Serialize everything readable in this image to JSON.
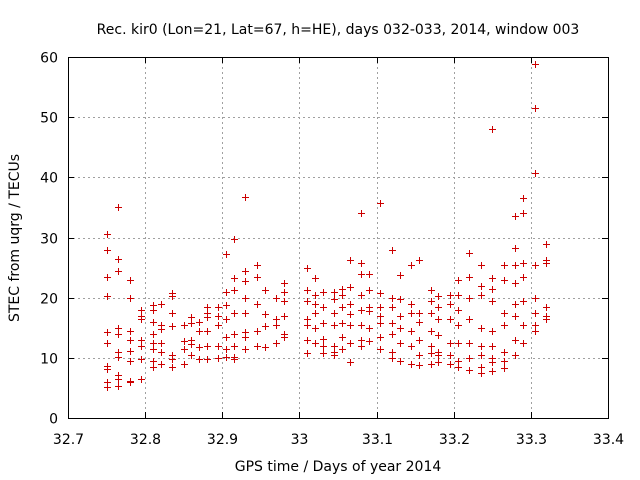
{
  "chart_data": {
    "type": "scatter",
    "title": "Rec. kir0 (Lon=21, Lat=67, h=HE), days 032-033, 2014, window 003",
    "xlabel": "GPS time / Days of year 2014",
    "ylabel": "STEC from uqrg / TECUs",
    "xlim": [
      32.7,
      33.4
    ],
    "ylim": [
      0,
      60
    ],
    "x_ticks": [
      32.7,
      32.8,
      32.9,
      33.0,
      33.1,
      33.2,
      33.3,
      33.4
    ],
    "x_tick_labels": [
      "32.7",
      "32.8",
      "32.9",
      "33",
      "33.1",
      "33.2",
      "33.3",
      "33.4"
    ],
    "y_ticks": [
      0,
      10,
      20,
      30,
      40,
      50,
      60
    ],
    "y_tick_labels": [
      "0",
      "10",
      "20",
      "30",
      "40",
      "50",
      "60"
    ],
    "grid": true,
    "marker": "+",
    "color": "#cc0000",
    "series": [
      {
        "name": "STEC",
        "points": [
          [
            32.75,
            30.5
          ],
          [
            32.75,
            28.0
          ],
          [
            32.75,
            23.5
          ],
          [
            32.75,
            20.2
          ],
          [
            32.75,
            14.3
          ],
          [
            32.75,
            12.5
          ],
          [
            32.75,
            8.6
          ],
          [
            32.75,
            8.2
          ],
          [
            32.75,
            6.0
          ],
          [
            32.75,
            5.1
          ],
          [
            32.765,
            35.0
          ],
          [
            32.765,
            26.5
          ],
          [
            32.765,
            24.5
          ],
          [
            32.765,
            15.0
          ],
          [
            32.765,
            14.0
          ],
          [
            32.765,
            11.0
          ],
          [
            32.765,
            10.2
          ],
          [
            32.765,
            7.2
          ],
          [
            32.765,
            6.5
          ],
          [
            32.765,
            5.3
          ],
          [
            32.78,
            23.0
          ],
          [
            32.78,
            20.0
          ],
          [
            32.78,
            14.5
          ],
          [
            32.78,
            13.0
          ],
          [
            32.78,
            11.2
          ],
          [
            32.78,
            9.5
          ],
          [
            32.78,
            6.2
          ],
          [
            32.78,
            6.0
          ],
          [
            32.795,
            18.0
          ],
          [
            32.795,
            17.0
          ],
          [
            32.795,
            16.5
          ],
          [
            32.795,
            13.0
          ],
          [
            32.795,
            12.0
          ],
          [
            32.795,
            9.8
          ],
          [
            32.795,
            6.5
          ],
          [
            32.81,
            18.8
          ],
          [
            32.81,
            18.0
          ],
          [
            32.81,
            16.0
          ],
          [
            32.81,
            14.0
          ],
          [
            32.81,
            12.5
          ],
          [
            32.81,
            11.5
          ],
          [
            32.81,
            9.5
          ],
          [
            32.81,
            8.5
          ],
          [
            32.82,
            19.0
          ],
          [
            32.82,
            15.5
          ],
          [
            32.82,
            14.8
          ],
          [
            32.82,
            12.5
          ],
          [
            32.82,
            11.0
          ],
          [
            32.82,
            9.0
          ],
          [
            32.835,
            20.8
          ],
          [
            32.835,
            20.2
          ],
          [
            32.835,
            17.5
          ],
          [
            32.835,
            15.3
          ],
          [
            32.835,
            10.5
          ],
          [
            32.835,
            9.8
          ],
          [
            32.835,
            8.5
          ],
          [
            32.85,
            15.5
          ],
          [
            32.85,
            12.8
          ],
          [
            32.85,
            11.5
          ],
          [
            32.85,
            9.0
          ],
          [
            32.86,
            16.8
          ],
          [
            32.86,
            15.8
          ],
          [
            32.86,
            13.0
          ],
          [
            32.86,
            12.3
          ],
          [
            32.86,
            10.5
          ],
          [
            32.87,
            16.0
          ],
          [
            32.87,
            14.5
          ],
          [
            32.87,
            11.8
          ],
          [
            32.87,
            9.8
          ],
          [
            32.88,
            18.5
          ],
          [
            32.88,
            17.5
          ],
          [
            32.88,
            16.8
          ],
          [
            32.88,
            14.5
          ],
          [
            32.88,
            12.0
          ],
          [
            32.88,
            9.8
          ],
          [
            32.895,
            18.5
          ],
          [
            32.895,
            17.0
          ],
          [
            32.895,
            15.5
          ],
          [
            32.895,
            12.0
          ],
          [
            32.895,
            10.0
          ],
          [
            32.905,
            27.3
          ],
          [
            32.905,
            21.0
          ],
          [
            32.905,
            18.8
          ],
          [
            32.905,
            16.5
          ],
          [
            32.905,
            13.5
          ],
          [
            32.905,
            11.5
          ],
          [
            32.905,
            10.2
          ],
          [
            32.915,
            29.8
          ],
          [
            32.915,
            23.3
          ],
          [
            32.915,
            21.3
          ],
          [
            32.915,
            17.5
          ],
          [
            32.915,
            14.0
          ],
          [
            32.915,
            12.0
          ],
          [
            32.915,
            10.2
          ],
          [
            32.915,
            9.8
          ],
          [
            32.93,
            36.8
          ],
          [
            32.93,
            24.5
          ],
          [
            32.93,
            22.8
          ],
          [
            32.93,
            20.0
          ],
          [
            32.93,
            17.5
          ],
          [
            32.93,
            14.3
          ],
          [
            32.93,
            13.5
          ],
          [
            32.93,
            11.5
          ],
          [
            32.945,
            25.5
          ],
          [
            32.945,
            23.5
          ],
          [
            32.945,
            19.0
          ],
          [
            32.945,
            14.5
          ],
          [
            32.945,
            12.0
          ],
          [
            32.955,
            21.3
          ],
          [
            32.955,
            17.3
          ],
          [
            32.955,
            15.3
          ],
          [
            32.955,
            11.8
          ],
          [
            32.97,
            20.0
          ],
          [
            32.97,
            16.5
          ],
          [
            32.97,
            15.5
          ],
          [
            32.97,
            12.5
          ],
          [
            32.98,
            22.5
          ],
          [
            32.98,
            21.0
          ],
          [
            32.98,
            19.5
          ],
          [
            32.98,
            17.0
          ],
          [
            32.98,
            14.0
          ],
          [
            32.98,
            13.5
          ],
          [
            33.01,
            25.0
          ],
          [
            33.01,
            21.3
          ],
          [
            33.01,
            19.5
          ],
          [
            33.01,
            16.5
          ],
          [
            33.01,
            15.5
          ],
          [
            33.01,
            13.0
          ],
          [
            33.01,
            10.8
          ],
          [
            33.02,
            23.2
          ],
          [
            33.02,
            20.5
          ],
          [
            33.02,
            19.0
          ],
          [
            33.02,
            17.5
          ],
          [
            33.02,
            15.0
          ],
          [
            33.02,
            12.5
          ],
          [
            33.03,
            21.0
          ],
          [
            33.03,
            18.5
          ],
          [
            33.03,
            15.8
          ],
          [
            33.03,
            13.2
          ],
          [
            33.03,
            12.0
          ],
          [
            33.03,
            10.8
          ],
          [
            33.045,
            21.0
          ],
          [
            33.045,
            19.8
          ],
          [
            33.045,
            17.5
          ],
          [
            33.045,
            15.5
          ],
          [
            33.045,
            12.0
          ],
          [
            33.045,
            11.0
          ],
          [
            33.045,
            10.5
          ],
          [
            33.055,
            21.5
          ],
          [
            33.055,
            20.5
          ],
          [
            33.055,
            18.5
          ],
          [
            33.055,
            15.8
          ],
          [
            33.055,
            13.5
          ],
          [
            33.055,
            11.5
          ],
          [
            33.065,
            26.3
          ],
          [
            33.065,
            21.8
          ],
          [
            33.065,
            19.0
          ],
          [
            33.065,
            17.3
          ],
          [
            33.065,
            15.5
          ],
          [
            33.065,
            12.5
          ],
          [
            33.065,
            9.3
          ],
          [
            33.08,
            34.0
          ],
          [
            33.08,
            25.8
          ],
          [
            33.08,
            24.0
          ],
          [
            33.08,
            20.5
          ],
          [
            33.08,
            18.0
          ],
          [
            33.08,
            15.5
          ],
          [
            33.08,
            13.0
          ],
          [
            33.08,
            12.0
          ],
          [
            33.09,
            24.0
          ],
          [
            33.09,
            21.3
          ],
          [
            33.09,
            18.5
          ],
          [
            33.09,
            17.8
          ],
          [
            33.09,
            15.0
          ],
          [
            33.09,
            12.8
          ],
          [
            33.105,
            35.8
          ],
          [
            33.105,
            20.8
          ],
          [
            33.105,
            18.5
          ],
          [
            33.105,
            17.0
          ],
          [
            33.105,
            15.8
          ],
          [
            33.105,
            13.5
          ],
          [
            33.105,
            11.5
          ],
          [
            33.12,
            28.0
          ],
          [
            33.12,
            20.0
          ],
          [
            33.12,
            18.5
          ],
          [
            33.12,
            15.8
          ],
          [
            33.12,
            14.0
          ],
          [
            33.12,
            11.0
          ],
          [
            33.12,
            10.0
          ],
          [
            33.13,
            23.8
          ],
          [
            33.13,
            19.8
          ],
          [
            33.13,
            17.0
          ],
          [
            33.13,
            15.0
          ],
          [
            33.13,
            12.5
          ],
          [
            33.13,
            9.5
          ],
          [
            33.145,
            25.5
          ],
          [
            33.145,
            19.0
          ],
          [
            33.145,
            17.5
          ],
          [
            33.145,
            14.5
          ],
          [
            33.145,
            12.0
          ],
          [
            33.145,
            9.0
          ],
          [
            33.155,
            26.3
          ],
          [
            33.155,
            17.5
          ],
          [
            33.155,
            16.0
          ],
          [
            33.155,
            13.0
          ],
          [
            33.155,
            10.5
          ],
          [
            33.155,
            8.8
          ],
          [
            33.17,
            21.3
          ],
          [
            33.17,
            19.5
          ],
          [
            33.17,
            17.5
          ],
          [
            33.17,
            14.5
          ],
          [
            33.17,
            12.0
          ],
          [
            33.17,
            10.8
          ],
          [
            33.17,
            9.0
          ],
          [
            33.18,
            20.3
          ],
          [
            33.18,
            18.5
          ],
          [
            33.18,
            16.5
          ],
          [
            33.18,
            13.8
          ],
          [
            33.18,
            11.0
          ],
          [
            33.18,
            10.5
          ],
          [
            33.18,
            9.3
          ],
          [
            33.195,
            20.5
          ],
          [
            33.195,
            19.0
          ],
          [
            33.195,
            16.5
          ],
          [
            33.195,
            12.5
          ],
          [
            33.195,
            10.5
          ],
          [
            33.195,
            9.0
          ],
          [
            33.205,
            23.0
          ],
          [
            33.205,
            20.5
          ],
          [
            33.205,
            18.0
          ],
          [
            33.205,
            15.5
          ],
          [
            33.205,
            12.5
          ],
          [
            33.205,
            9.5
          ],
          [
            33.205,
            8.5
          ],
          [
            33.22,
            27.5
          ],
          [
            33.22,
            23.5
          ],
          [
            33.22,
            20.0
          ],
          [
            33.22,
            16.5
          ],
          [
            33.22,
            12.5
          ],
          [
            33.22,
            10.0
          ],
          [
            33.22,
            8.0
          ],
          [
            33.235,
            25.5
          ],
          [
            33.235,
            22.0
          ],
          [
            33.235,
            20.5
          ],
          [
            33.235,
            15.0
          ],
          [
            33.235,
            12.0
          ],
          [
            33.235,
            10.5
          ],
          [
            33.235,
            8.5
          ],
          [
            33.235,
            7.5
          ],
          [
            33.25,
            48.0
          ],
          [
            33.25,
            23.3
          ],
          [
            33.25,
            21.5
          ],
          [
            33.25,
            19.5
          ],
          [
            33.25,
            14.5
          ],
          [
            33.25,
            12.0
          ],
          [
            33.25,
            10.0
          ],
          [
            33.25,
            9.3
          ],
          [
            33.25,
            7.8
          ],
          [
            33.265,
            25.5
          ],
          [
            33.265,
            23.0
          ],
          [
            33.265,
            17.5
          ],
          [
            33.265,
            15.5
          ],
          [
            33.265,
            11.0
          ],
          [
            33.265,
            9.5
          ],
          [
            33.265,
            8.3
          ],
          [
            33.28,
            33.5
          ],
          [
            33.28,
            28.3
          ],
          [
            33.28,
            25.5
          ],
          [
            33.28,
            22.5
          ],
          [
            33.28,
            19.0
          ],
          [
            33.28,
            17.0
          ],
          [
            33.28,
            13.0
          ],
          [
            33.28,
            10.5
          ],
          [
            33.29,
            36.5
          ],
          [
            33.29,
            34.0
          ],
          [
            33.29,
            25.8
          ],
          [
            33.29,
            23.5
          ],
          [
            33.29,
            19.5
          ],
          [
            33.29,
            15.5
          ],
          [
            33.29,
            12.5
          ],
          [
            33.305,
            58.8
          ],
          [
            33.305,
            51.5
          ],
          [
            33.305,
            40.8
          ],
          [
            33.305,
            25.5
          ],
          [
            33.305,
            20.0
          ],
          [
            33.305,
            17.5
          ],
          [
            33.305,
            15.5
          ],
          [
            33.305,
            14.5
          ],
          [
            33.32,
            29.0
          ],
          [
            33.32,
            26.3
          ],
          [
            33.32,
            25.8
          ],
          [
            33.32,
            18.5
          ],
          [
            33.32,
            17.0
          ],
          [
            33.32,
            16.5
          ]
        ]
      }
    ]
  }
}
